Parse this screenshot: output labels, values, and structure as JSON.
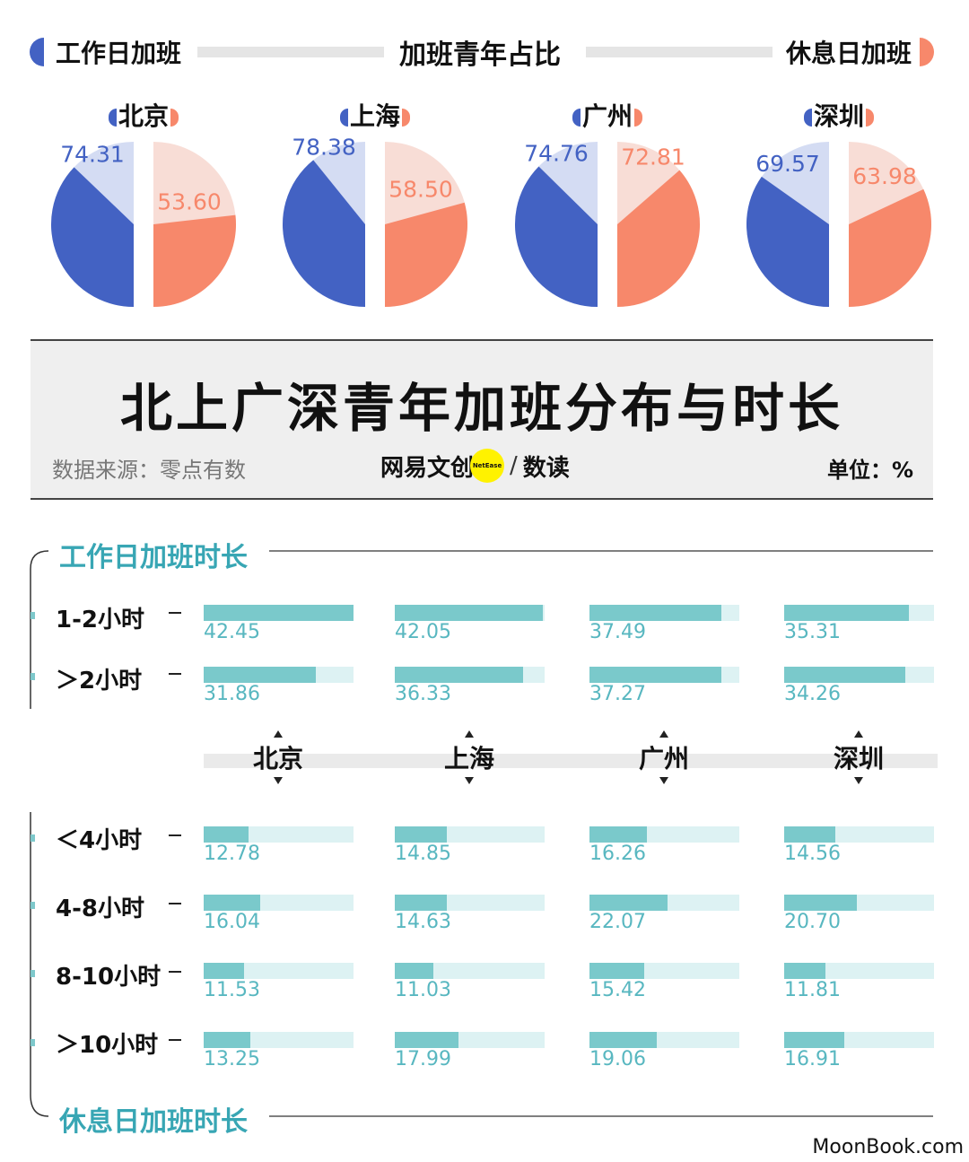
{
  "header": {
    "left_label": "工作日加班",
    "center_title": "加班青年占比",
    "right_label": "休息日加班",
    "weekday_color": "#4362c3",
    "weekend_color": "#f7886b"
  },
  "chart_data": [
    {
      "type": "pie",
      "title": "加班青年占比",
      "series": [
        {
          "name": "工作日加班",
          "color": "#4362c3"
        },
        {
          "name": "休息日加班",
          "color": "#f7886b"
        }
      ],
      "cities": [
        {
          "name": "北京",
          "weekday": 74.31,
          "weekend": 53.6,
          "weekday_label": "74.31",
          "weekend_label": "53.60"
        },
        {
          "name": "上海",
          "weekday": 78.38,
          "weekend": 58.5,
          "weekday_label": "78.38",
          "weekend_label": "58.50"
        },
        {
          "name": "广州",
          "weekday": 74.76,
          "weekend": 72.81,
          "weekday_label": "74.76",
          "weekend_label": "72.81"
        },
        {
          "name": "深圳",
          "weekday": 69.57,
          "weekend": 63.98,
          "weekday_label": "69.57",
          "weekend_label": "63.98"
        }
      ]
    },
    {
      "type": "bar",
      "title": "工作日加班时长",
      "categories": [
        "1-2小时",
        "＞2小时"
      ],
      "series": [
        {
          "name": "北京",
          "values": [
            42.45,
            31.86
          ],
          "labels": [
            "42.45",
            "31.86"
          ]
        },
        {
          "name": "上海",
          "values": [
            42.05,
            36.33
          ],
          "labels": [
            "42.05",
            "36.33"
          ]
        },
        {
          "name": "广州",
          "values": [
            37.49,
            37.27
          ],
          "labels": [
            "37.49",
            "37.27"
          ]
        },
        {
          "name": "深圳",
          "values": [
            35.31,
            34.26
          ],
          "labels": [
            "35.31",
            "34.26"
          ]
        }
      ],
      "ylim": [
        0,
        42.45
      ]
    },
    {
      "type": "bar",
      "title": "休息日加班时长",
      "categories": [
        "＜4小时",
        "4-8小时",
        "8-10小时",
        "＞10小时"
      ],
      "series": [
        {
          "name": "北京",
          "values": [
            12.78,
            16.04,
            11.53,
            13.25
          ],
          "labels": [
            "12.78",
            "16.04",
            "11.53",
            "13.25"
          ]
        },
        {
          "name": "上海",
          "values": [
            14.85,
            14.63,
            11.03,
            17.99
          ],
          "labels": [
            "14.85",
            "14.63",
            "11.03",
            "17.99"
          ]
        },
        {
          "name": "广州",
          "values": [
            16.26,
            22.07,
            15.42,
            19.06
          ],
          "labels": [
            "16.26",
            "22.07",
            "15.42",
            "19.06"
          ]
        },
        {
          "name": "深圳",
          "values": [
            14.56,
            20.7,
            11.81,
            16.91
          ],
          "labels": [
            "14.56",
            "20.70",
            "11.81",
            "16.91"
          ]
        }
      ],
      "ylim": [
        0,
        42.45
      ]
    }
  ],
  "banner": {
    "title": "北上广深青年加班分布与时长",
    "source": "数据来源：零点有数",
    "brand": "网易文创",
    "brand_badge": "NetEase",
    "brand_sep": "/",
    "brand_sub": "数读",
    "unit": "单位：%"
  },
  "sections": {
    "weekday": "工作日加班时长",
    "weekend": "休息日加班时长"
  },
  "watermark": "MoonBook.com"
}
